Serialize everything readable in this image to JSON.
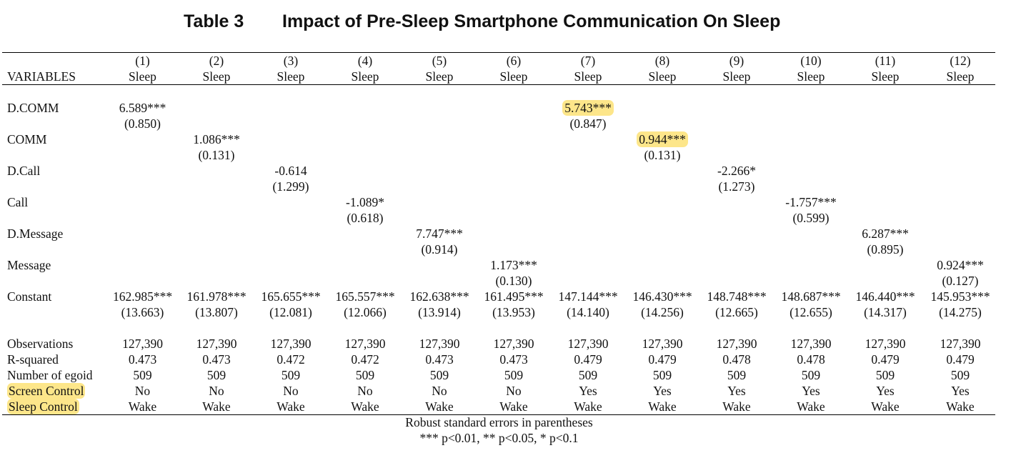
{
  "title": {
    "number": "Table 3",
    "text": "Impact of Pre-Sleep Smartphone Communication On Sleep"
  },
  "header": {
    "stub": "VARIABLES",
    "col_numbers": [
      "(1)",
      "(2)",
      "(3)",
      "(4)",
      "(5)",
      "(6)",
      "(7)",
      "(8)",
      "(9)",
      "(10)",
      "(11)",
      "(12)"
    ],
    "dep_var": [
      "Sleep",
      "Sleep",
      "Sleep",
      "Sleep",
      "Sleep",
      "Sleep",
      "Sleep",
      "Sleep",
      "Sleep",
      "Sleep",
      "Sleep",
      "Sleep"
    ]
  },
  "coef_rows": [
    {
      "label": "D.COMM",
      "coef": [
        "6.589***",
        "",
        "",
        "",
        "",
        "",
        "5.743***",
        "",
        "",
        "",
        "",
        ""
      ],
      "se": [
        "(0.850)",
        "",
        "",
        "",
        "",
        "",
        "(0.847)",
        "",
        "",
        "",
        "",
        ""
      ]
    },
    {
      "label": "COMM",
      "coef": [
        "",
        "1.086***",
        "",
        "",
        "",
        "",
        "",
        "0.944***",
        "",
        "",
        "",
        ""
      ],
      "se": [
        "",
        "(0.131)",
        "",
        "",
        "",
        "",
        "",
        "(0.131)",
        "",
        "",
        "",
        ""
      ]
    },
    {
      "label": "D.Call",
      "coef": [
        "",
        "",
        "-0.614",
        "",
        "",
        "",
        "",
        "",
        "-2.266*",
        "",
        "",
        ""
      ],
      "se": [
        "",
        "",
        "(1.299)",
        "",
        "",
        "",
        "",
        "",
        "(1.273)",
        "",
        "",
        ""
      ]
    },
    {
      "label": "Call",
      "coef": [
        "",
        "",
        "",
        "-1.089*",
        "",
        "",
        "",
        "",
        "",
        "-1.757***",
        "",
        ""
      ],
      "se": [
        "",
        "",
        "",
        "(0.618)",
        "",
        "",
        "",
        "",
        "",
        "(0.599)",
        "",
        ""
      ]
    },
    {
      "label": "D.Message",
      "coef": [
        "",
        "",
        "",
        "",
        "7.747***",
        "",
        "",
        "",
        "",
        "",
        "6.287***",
        ""
      ],
      "se": [
        "",
        "",
        "",
        "",
        "(0.914)",
        "",
        "",
        "",
        "",
        "",
        "(0.895)",
        ""
      ]
    },
    {
      "label": "Message",
      "coef": [
        "",
        "",
        "",
        "",
        "",
        "1.173***",
        "",
        "",
        "",
        "",
        "",
        "0.924***"
      ],
      "se": [
        "",
        "",
        "",
        "",
        "",
        "(0.130)",
        "",
        "",
        "",
        "",
        "",
        "(0.127)"
      ]
    },
    {
      "label": "Constant",
      "coef": [
        "162.985***",
        "161.978***",
        "165.655***",
        "165.557***",
        "162.638***",
        "161.495***",
        "147.144***",
        "146.430***",
        "148.748***",
        "148.687***",
        "146.440***",
        "145.953***"
      ],
      "se": [
        "(13.663)",
        "(13.807)",
        "(12.081)",
        "(12.066)",
        "(13.914)",
        "(13.953)",
        "(14.140)",
        "(14.256)",
        "(12.665)",
        "(12.655)",
        "(14.317)",
        "(14.275)"
      ]
    }
  ],
  "stat_rows": [
    {
      "label": "Observations",
      "values": [
        "127,390",
        "127,390",
        "127,390",
        "127,390",
        "127,390",
        "127,390",
        "127,390",
        "127,390",
        "127,390",
        "127,390",
        "127,390",
        "127,390"
      ]
    },
    {
      "label": "R-squared",
      "values": [
        "0.473",
        "0.473",
        "0.472",
        "0.472",
        "0.473",
        "0.473",
        "0.479",
        "0.479",
        "0.478",
        "0.478",
        "0.479",
        "0.479"
      ]
    },
    {
      "label": "Number of egoid",
      "values": [
        "509",
        "509",
        "509",
        "509",
        "509",
        "509",
        "509",
        "509",
        "509",
        "509",
        "509",
        "509"
      ]
    },
    {
      "label": "Screen Control",
      "values": [
        "No",
        "No",
        "No",
        "No",
        "No",
        "No",
        "Yes",
        "Yes",
        "Yes",
        "Yes",
        "Yes",
        "Yes"
      ]
    },
    {
      "label": "Sleep Control",
      "values": [
        "Wake",
        "Wake",
        "Wake",
        "Wake",
        "Wake",
        "Wake",
        "Wake",
        "Wake",
        "Wake",
        "Wake",
        "Wake",
        "Wake"
      ]
    }
  ],
  "highlights": {
    "color": "#fde68a",
    "cells": [
      {
        "row": 0,
        "col": 6
      },
      {
        "row": 1,
        "col": 7
      }
    ],
    "labels": [
      "Screen Control",
      "Sleep Control"
    ]
  },
  "footnotes": [
    "Robust standard errors in parentheses",
    "*** p<0.01, ** p<0.05, * p<0.1"
  ]
}
